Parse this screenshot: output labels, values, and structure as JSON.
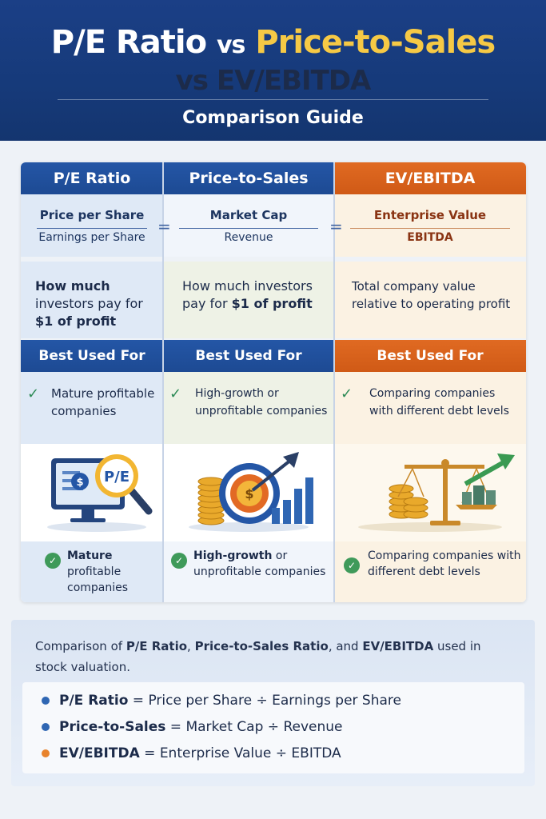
{
  "header": {
    "title_pe": "P/E Ratio",
    "title_vs1": "vs",
    "title_ps": "Price-to-Sales",
    "title_vs2": "vs",
    "title_ev": "EV/EBITDA",
    "subtitle": "Comparison Guide"
  },
  "equals_sign": "=",
  "columns": [
    {
      "name": "P/E Ratio",
      "numerator": "Price per Share",
      "denominator": "Earnings per Share",
      "desc_bold_start": "How much",
      "desc_middle": " investors pay for ",
      "desc_bold_end": "$1 of profit",
      "best_used_heading": "Best Used For",
      "check_mark": "✓",
      "best_used": "Mature profitable companies",
      "best_used_lower_bold": "Mature",
      "best_used_lower_rest": "profitable companies",
      "header_color": "#2456a6"
    },
    {
      "name": "Price-to-Sales",
      "numerator": "Market Cap",
      "denominator": "Revenue",
      "desc_plain": "How much investors pay for ",
      "desc_bold_end": "$1 of profit",
      "best_used_heading": "Best Used For",
      "check_mark": "✓",
      "best_used": "High-growth or unprofitable companies",
      "best_used_lower_bold": "High-growth",
      "best_used_lower_rest": " or unprofitable companies",
      "header_color": "#2456a6"
    },
    {
      "name": "EV/EBITDA",
      "numerator": "Enterprise Value",
      "denominator": "EBITDA",
      "desc_plain": "Total company value relative to operating profit",
      "best_used_heading": "Best Used For",
      "check_mark": "✓",
      "best_used": "Comparing companies with different debt levels",
      "best_used_lower": "Comparing companies with different debt levels",
      "header_color": "#e06a22"
    }
  ],
  "art": {
    "pe_badge": "P/E",
    "dollar": "$"
  },
  "footer": {
    "desc_prefix": "Comparison of ",
    "desc_pe": "P/E Ratio",
    "desc_sep1": ", ",
    "desc_ps": "Price-to-Sales Ratio",
    "desc_sep2": ", and ",
    "desc_ev": "EV/EBITDA",
    "desc_suffix": " used in stock valuation.",
    "formulas": [
      {
        "name": "P/E Ratio",
        "eq": " = ",
        "num": "Price per Share",
        "op": " ÷ ",
        "den": "Earnings per Share",
        "dot_color": "#2f66b3"
      },
      {
        "name": "Price-to-Sales",
        "eq": " = ",
        "num": "Market Cap",
        "op": " ÷ ",
        "den": "Revenue",
        "dot_color": "#2f66b3"
      },
      {
        "name": "EV/EBITDA",
        "eq": " = ",
        "num": "Enterprise Value",
        "op": " ÷ ",
        "den": "EBITDA",
        "dot_color": "#e8832c"
      }
    ]
  }
}
